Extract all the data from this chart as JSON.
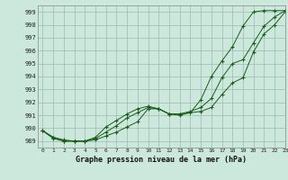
{
  "title": "Graphe pression niveau de la mer (hPa)",
  "bg_color": "#cce8dd",
  "grid_color": "#99bbaa",
  "line_color": "#1a5c1a",
  "xlim": [
    -0.5,
    23
  ],
  "ylim": [
    988.5,
    999.5
  ],
  "yticks": [
    989,
    990,
    991,
    992,
    993,
    994,
    995,
    996,
    997,
    998,
    999
  ],
  "xticks": [
    0,
    1,
    2,
    3,
    4,
    5,
    6,
    7,
    8,
    9,
    10,
    11,
    12,
    13,
    14,
    15,
    16,
    17,
    18,
    19,
    20,
    21,
    22,
    23
  ],
  "hours": [
    0,
    1,
    2,
    3,
    4,
    5,
    6,
    7,
    8,
    9,
    10,
    11,
    12,
    13,
    14,
    15,
    16,
    17,
    18,
    19,
    20,
    21,
    22,
    23
  ],
  "line1": [
    989.8,
    989.3,
    989.1,
    989.0,
    989.0,
    989.1,
    989.4,
    989.7,
    990.1,
    990.5,
    991.5,
    991.5,
    991.1,
    991.1,
    991.2,
    991.3,
    991.6,
    992.6,
    993.5,
    993.9,
    995.9,
    997.3,
    998.0,
    999.0
  ],
  "line2": [
    989.8,
    989.3,
    989.0,
    989.0,
    989.0,
    989.2,
    989.7,
    990.2,
    990.8,
    991.2,
    991.6,
    991.5,
    991.1,
    991.1,
    991.3,
    991.6,
    992.3,
    993.9,
    995.0,
    995.3,
    996.6,
    997.9,
    998.6,
    999.1
  ],
  "line3": [
    989.8,
    989.2,
    989.0,
    989.0,
    989.0,
    989.3,
    990.1,
    990.6,
    991.1,
    991.5,
    991.7,
    991.5,
    991.1,
    991.0,
    991.2,
    992.2,
    994.0,
    995.2,
    996.3,
    997.9,
    999.0,
    999.1,
    999.1,
    999.1
  ]
}
